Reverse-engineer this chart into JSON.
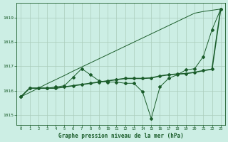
{
  "title": "Graphe pression niveau de la mer (hPa)",
  "background_color": "#cceee4",
  "plot_bg_color": "#cceee4",
  "grid_color": "#aaccbb",
  "line_color": "#1a5c2a",
  "xlim": [
    -0.5,
    23.5
  ],
  "ylim": [
    1014.6,
    1019.6
  ],
  "yticks": [
    1015,
    1016,
    1017,
    1018,
    1019
  ],
  "xticks": [
    0,
    1,
    2,
    3,
    4,
    5,
    6,
    7,
    8,
    9,
    10,
    11,
    12,
    13,
    14,
    15,
    16,
    17,
    18,
    19,
    20,
    21,
    22,
    23
  ],
  "series_diagonal": [
    1015.75,
    1015.92,
    1016.1,
    1016.28,
    1016.45,
    1016.62,
    1016.8,
    1016.97,
    1017.14,
    1017.31,
    1017.48,
    1017.65,
    1017.82,
    1017.99,
    1018.16,
    1018.33,
    1018.5,
    1018.67,
    1018.84,
    1019.01,
    1019.18,
    1019.25,
    1019.3,
    1019.35
  ],
  "series_main": [
    1015.75,
    1016.1,
    1016.1,
    1016.1,
    1016.15,
    1016.2,
    1016.55,
    1016.9,
    1016.65,
    1016.4,
    1016.35,
    1016.35,
    1016.3,
    1016.3,
    1015.95,
    1014.85,
    1016.15,
    1016.5,
    1016.65,
    1016.85,
    1016.9,
    1017.4,
    1018.5,
    1019.35
  ],
  "series_flat": [
    1015.75,
    1016.1,
    1016.1,
    1016.1,
    1016.1,
    1016.15,
    1016.2,
    1016.25,
    1016.3,
    1016.35,
    1016.4,
    1016.45,
    1016.5,
    1016.5,
    1016.5,
    1016.52,
    1016.6,
    1016.65,
    1016.68,
    1016.7,
    1016.75,
    1016.82,
    1016.88,
    1019.35
  ]
}
